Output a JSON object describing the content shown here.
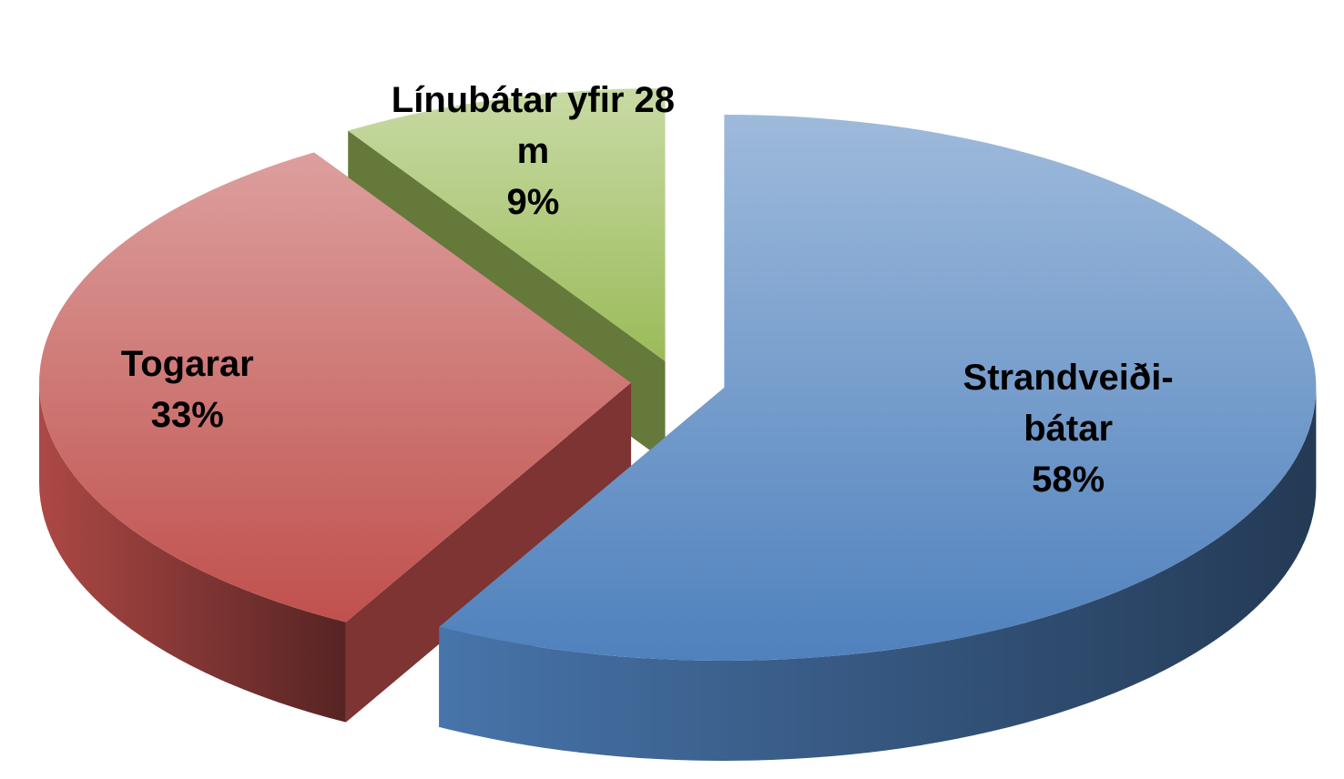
{
  "chart_data": {
    "type": "pie",
    "categories": [
      "Strandveiði-bátar",
      "Togarar",
      "Línubátar yfir 28 m"
    ],
    "values": [
      58,
      33,
      9
    ],
    "value_labels": [
      "58%",
      "33%",
      "9%"
    ],
    "colors": [
      "#4f81bd",
      "#c0504d",
      "#9bbb59"
    ]
  }
}
